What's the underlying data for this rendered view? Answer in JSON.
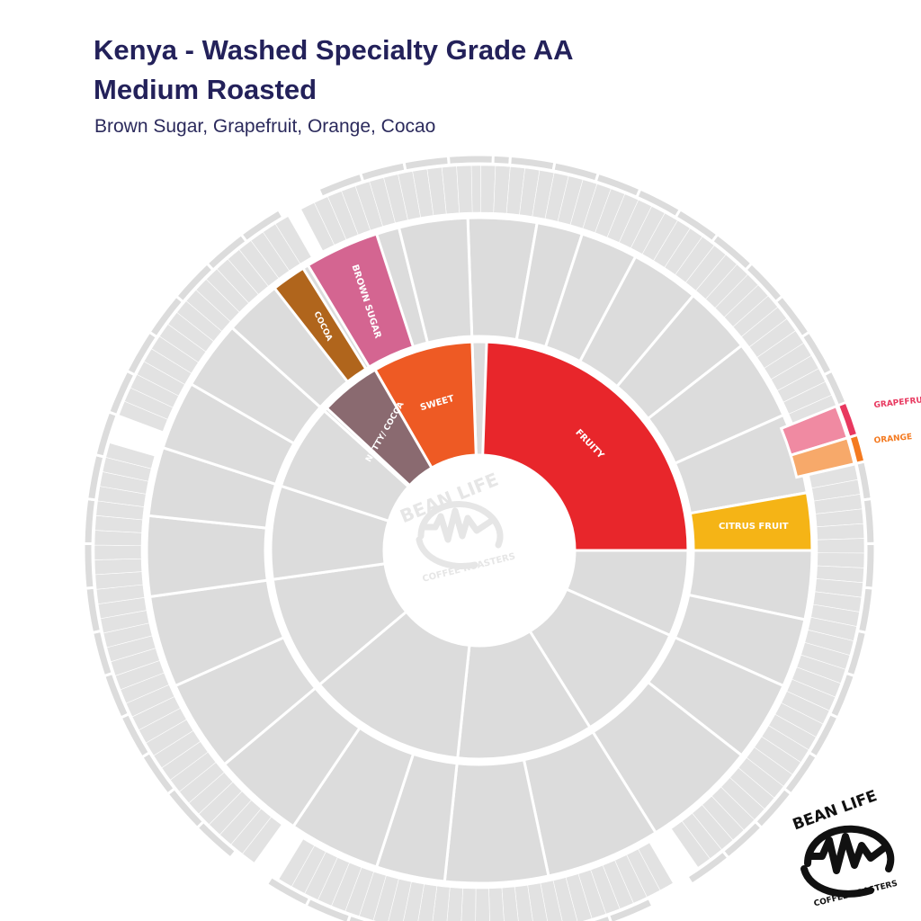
{
  "title": {
    "line1": "Kenya - Washed Specialty Grade AA",
    "line2": "Medium Roasted"
  },
  "subtitle": "Brown Sugar, Grapefruit, Orange, Cocao",
  "watermark": {
    "top": "BEAN LIFE",
    "bottom": "COFFEE ROASTERS"
  },
  "logo": {
    "top": "BEAN LIFE",
    "bottom": "COFFEE ROASTERS",
    "icon": "bean-life-wave-logo"
  },
  "colors": {
    "title": "#23215a",
    "inactive": "#dcdcdc",
    "fruity": "#e8262b",
    "sweet": "#ee5a24",
    "nutty_cocoa": "#8a6a70",
    "citrus_fruit": "#f5b416",
    "brown_sugar": "#d46591",
    "cocoa": "#b0651c",
    "grapefruit": "#e8385f",
    "orange": "#f47a20"
  },
  "chart_data": {
    "type": "sunburst",
    "title": "Kenya - Washed Specialty Grade AA Medium Roasted",
    "subtitle": "Brown Sugar, Grapefruit, Orange, Cocao",
    "highlighted": [
      {
        "level": 1,
        "label": "FRUITY",
        "color": "#e8262b"
      },
      {
        "level": 1,
        "label": "SWEET",
        "color": "#ee5a24"
      },
      {
        "level": 1,
        "label": "NUTTY/ COCOA",
        "color": "#8a6a70"
      },
      {
        "level": 2,
        "label": "CITRUS FRUIT",
        "parent": "FRUITY",
        "color": "#f5b416"
      },
      {
        "level": 2,
        "label": "BROWN SUGAR",
        "parent": "SWEET",
        "color": "#d46591"
      },
      {
        "level": 2,
        "label": "COCOA",
        "parent": "NUTTY/ COCOA",
        "color": "#b0651c"
      },
      {
        "level": 3,
        "label": "GRAPEFRUIT",
        "parent": "CITRUS FRUIT",
        "color": "#e8385f"
      },
      {
        "level": 3,
        "label": "ORANGE",
        "parent": "CITRUS FRUIT",
        "color": "#f47a20"
      }
    ],
    "inactive_color": "#dcdcdc"
  }
}
